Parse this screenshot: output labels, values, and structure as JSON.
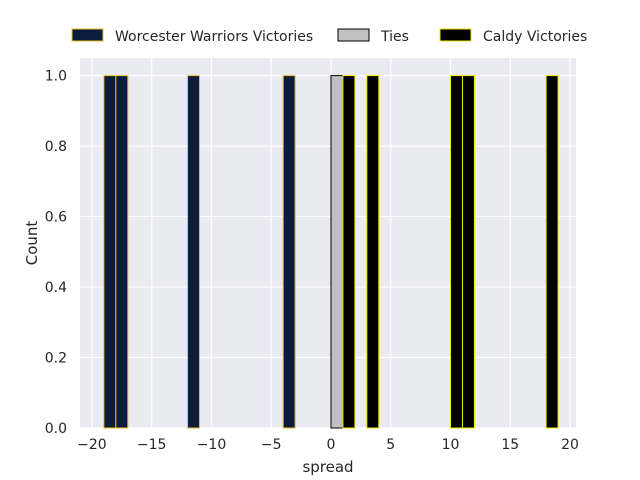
{
  "chart_data": {
    "type": "bar",
    "xlabel": "spread",
    "ylabel": "Count",
    "xlim": [
      -21,
      20.5
    ],
    "ylim": [
      0,
      1.05
    ],
    "xticks": [
      -20,
      -15,
      -10,
      -5,
      0,
      5,
      10,
      15,
      20
    ],
    "xtick_labels": [
      "−20",
      "−15",
      "−10",
      "−5",
      "0",
      "5",
      "10",
      "15",
      "20"
    ],
    "yticks": [
      0.0,
      0.2,
      0.4,
      0.6,
      0.8,
      1.0
    ],
    "ytick_labels": [
      "0.0",
      "0.2",
      "0.4",
      "0.6",
      "0.8",
      "1.0"
    ],
    "grid": true,
    "legend_position": "top",
    "bin_width": 1,
    "series": [
      {
        "name": "Worcester Warriors Victories",
        "fill": "#0c1c3c",
        "edge": "#e8c21c",
        "bins": [
          {
            "x": -19,
            "count": 1
          },
          {
            "x": -18,
            "count": 1
          },
          {
            "x": -12,
            "count": 1
          },
          {
            "x": -4,
            "count": 1
          }
        ]
      },
      {
        "name": "Ties",
        "fill": "#c0c0c0",
        "edge": "#000000",
        "bins": [
          {
            "x": 0,
            "count": 1
          }
        ]
      },
      {
        "name": "Caldy Victories",
        "fill": "#000000",
        "edge": "#f5e600",
        "bins": [
          {
            "x": 1,
            "count": 1
          },
          {
            "x": 3,
            "count": 1
          },
          {
            "x": 10,
            "count": 1
          },
          {
            "x": 11,
            "count": 1
          },
          {
            "x": 18,
            "count": 1
          }
        ]
      }
    ]
  }
}
